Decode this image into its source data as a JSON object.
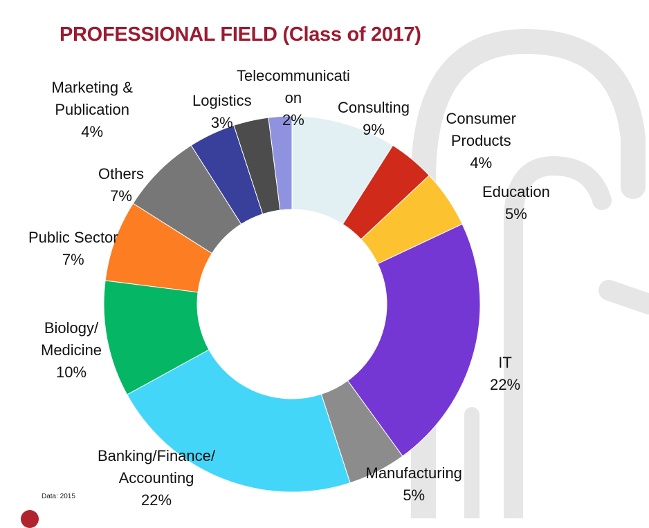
{
  "chart_data": {
    "type": "donut",
    "title": "PROFESSIONAL FIELD (Class of 2017)",
    "source_note": "Data: 2015",
    "slices": [
      {
        "label_lines": [
          "Consulting"
        ],
        "value_label": "9%",
        "value": 9,
        "color": "#e2f0f3"
      },
      {
        "label_lines": [
          "Consumer",
          "Products"
        ],
        "value_label": "4%",
        "value": 4,
        "color": "#d02a1b"
      },
      {
        "label_lines": [
          "Education"
        ],
        "value_label": "5%",
        "value": 5,
        "color": "#fdc22f"
      },
      {
        "label_lines": [
          "IT"
        ],
        "value_label": "22%",
        "value": 22,
        "color": "#7537d4"
      },
      {
        "label_lines": [
          "Manufacturing"
        ],
        "value_label": "5%",
        "value": 5,
        "color": "#8c8c8c"
      },
      {
        "label_lines": [
          "Banking/Finance/",
          "Accounting"
        ],
        "value_label": "22%",
        "value": 22,
        "color": "#44d6f9"
      },
      {
        "label_lines": [
          "Biology/",
          "Medicine"
        ],
        "value_label": "10%",
        "value": 10,
        "color": "#05b664"
      },
      {
        "label_lines": [
          "Public Sector"
        ],
        "value_label": "7%",
        "value": 7,
        "color": "#fc7d22"
      },
      {
        "label_lines": [
          "Others"
        ],
        "value_label": "7%",
        "value": 7,
        "color": "#777777"
      },
      {
        "label_lines": [
          "Marketing &",
          "Publication"
        ],
        "value_label": "4%",
        "value": 4,
        "color": "#38409b"
      },
      {
        "label_lines": [
          "Logistics"
        ],
        "value_label": "3%",
        "value": 3,
        "color": "#4c4c4c"
      },
      {
        "label_lines": [
          "Telecommunicati",
          "on"
        ],
        "value_label": "2%",
        "value": 2,
        "color": "#8f93df"
      }
    ]
  }
}
